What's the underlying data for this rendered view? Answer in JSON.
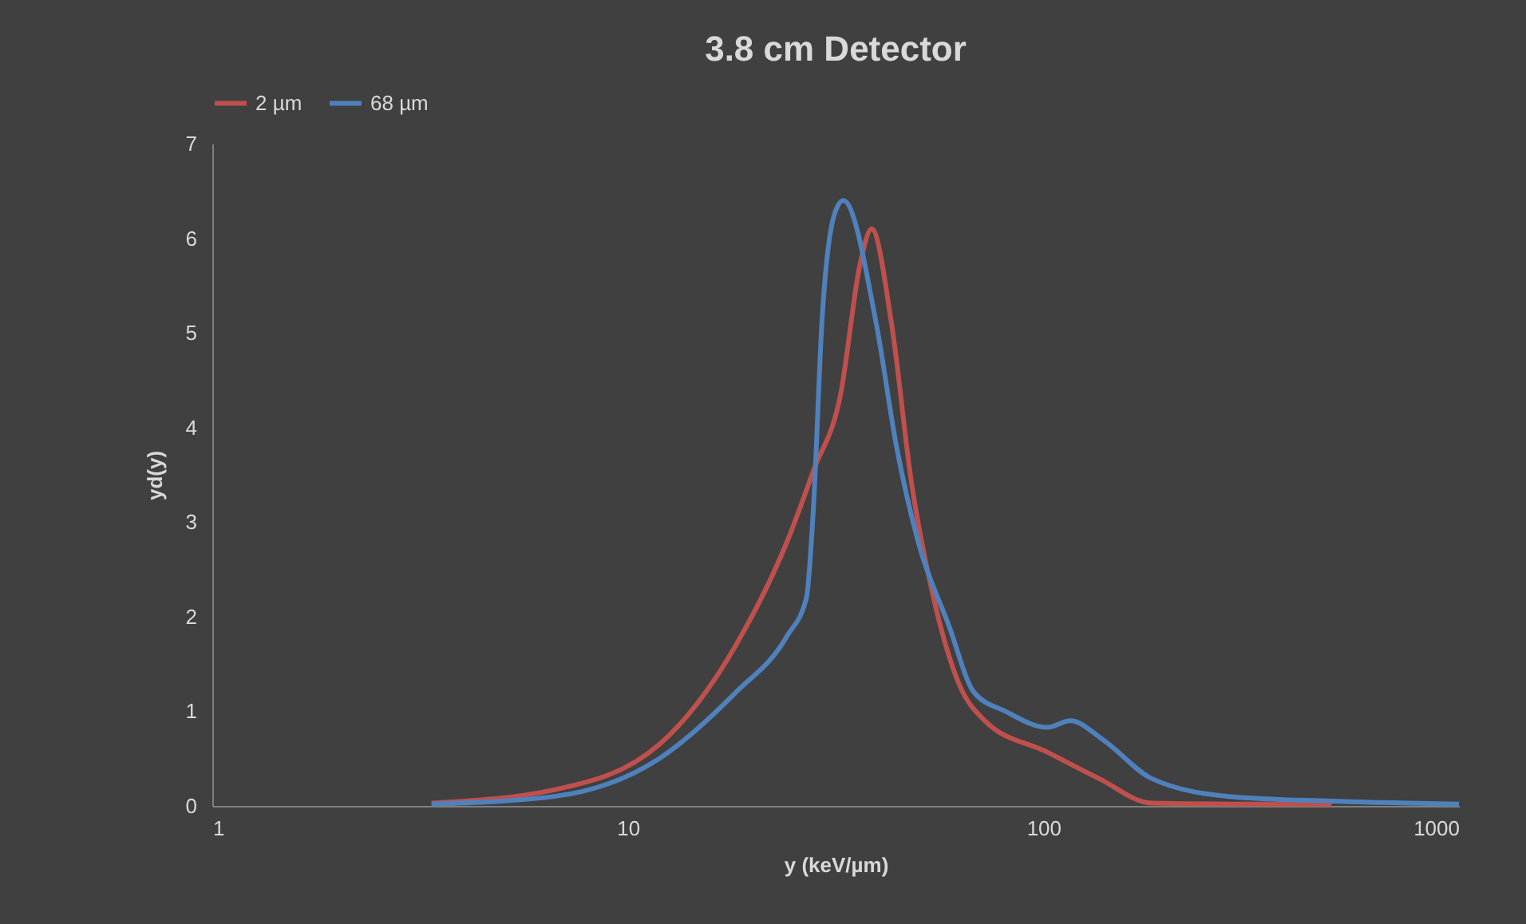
{
  "chart_data": {
    "type": "line",
    "title": "3.8 cm Detector",
    "xlabel": "y (keV/µm)",
    "ylabel": "yd(y)",
    "log": "x",
    "xlim": [
      1,
      1000
    ],
    "xticks": [
      1,
      10,
      100,
      1000
    ],
    "ylim": [
      0,
      7
    ],
    "yticks": [
      0,
      1,
      2,
      3,
      4,
      5,
      6,
      7
    ],
    "grid": false,
    "legend": "top",
    "marker": "none",
    "line_style": "solid",
    "series": [
      {
        "name": "2 µm",
        "color": "#c0504d",
        "x": [
          3.37,
          6.65,
          11.9,
          18.2,
          24.2,
          28,
          32.5,
          36.3,
          38.6,
          43.1,
          48.2,
          54.4,
          62.5,
          72.3,
          102,
          136,
          182,
          280,
          494
        ],
        "values": [
          0.03,
          0.17,
          0.65,
          1.7,
          2.8,
          3.55,
          4.35,
          5.75,
          6.1,
          5.1,
          3.4,
          2.2,
          1.3,
          0.9,
          0.57,
          0.29,
          0.03,
          0.02,
          0.02
        ]
      },
      {
        "name": "68 µm",
        "color": "#4f81bd",
        "x": [
          3.37,
          6.65,
          11.9,
          18.2,
          24.2,
          26.9,
          28,
          29.3,
          31.4,
          33,
          39.6,
          44.3,
          49.9,
          59.3,
          68.1,
          81,
          102,
          116,
          140,
          182,
          280,
          494,
          1000
        ],
        "values": [
          0.02,
          0.1,
          0.5,
          1.2,
          1.8,
          2.2,
          3.2,
          5.1,
          6.25,
          6.4,
          5.1,
          3.8,
          2.8,
          1.9,
          1.2,
          1.0,
          0.83,
          0.9,
          0.69,
          0.29,
          0.1,
          0.05,
          0.02
        ]
      }
    ]
  }
}
